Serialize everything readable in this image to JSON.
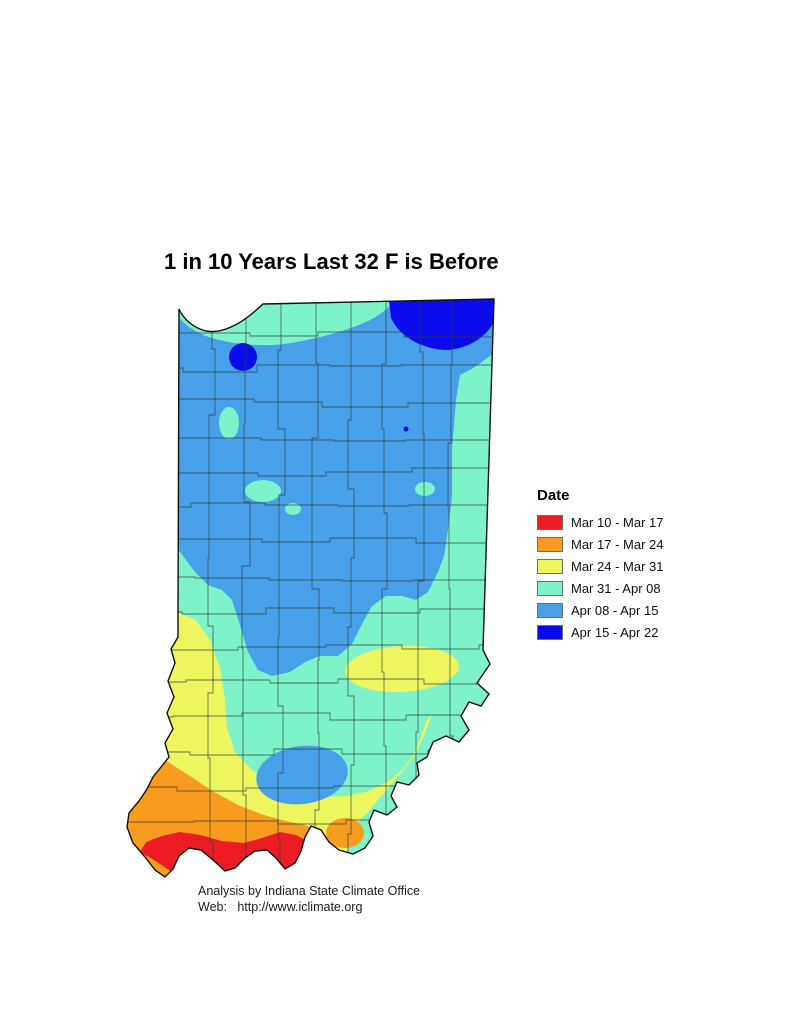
{
  "title": "1 in 10 Years Last 32 F is Before",
  "colors": {
    "red": "#EC1C24",
    "orange": "#F79C1E",
    "yellow": "#EDF55F",
    "aqua": "#7EF2C8",
    "blue": "#47A0E8",
    "dark_blue": "#0B0BEB",
    "county_line": "#2E3A3F",
    "state_border": "#111111"
  },
  "legend": {
    "title": "Date",
    "items": [
      {
        "label": "Mar 10 - Mar 17",
        "color_key": "red"
      },
      {
        "label": "Mar 17 - Mar 24",
        "color_key": "orange"
      },
      {
        "label": "Mar 24 - Mar 31",
        "color_key": "yellow"
      },
      {
        "label": "Mar 31 - Apr 08",
        "color_key": "aqua"
      },
      {
        "label": "Apr 08 - Apr 15",
        "color_key": "blue"
      },
      {
        "label": "Apr 15 - Apr 22",
        "color_key": "dark_blue"
      }
    ]
  },
  "map": {
    "region": "Indiana",
    "zones": [
      {
        "dates": "Mar 10 - Mar 17",
        "color_key": "red",
        "where": "narrow band along the far southwestern Ohio River border"
      },
      {
        "dates": "Mar 17 - Mar 24",
        "color_key": "orange",
        "where": "southwestern corner plus a small pocket on the south-central border"
      },
      {
        "dates": "Mar 24 - Mar 31",
        "color_key": "yellow",
        "where": "west-central strip along the Wabash, a band sweeping across the south, and an east-central patch"
      },
      {
        "dates": "Mar 31 - Apr 08",
        "color_key": "aqua",
        "where": "most of central and southern Indiana, the eastern border strip, and the Lake Michigan shore"
      },
      {
        "dates": "Apr 08 - Apr 15",
        "color_key": "blue",
        "where": "most of northern Indiana plus a pocket in the south-central hills"
      },
      {
        "dates": "Apr 15 - Apr 22",
        "color_key": "dark_blue",
        "where": "far northeast corner and a small spot in the La Porte area"
      }
    ]
  },
  "attribution": {
    "line1": "Analysis by Indiana State Climate Office",
    "line2": "Web:   http://www.iclimate.org"
  }
}
